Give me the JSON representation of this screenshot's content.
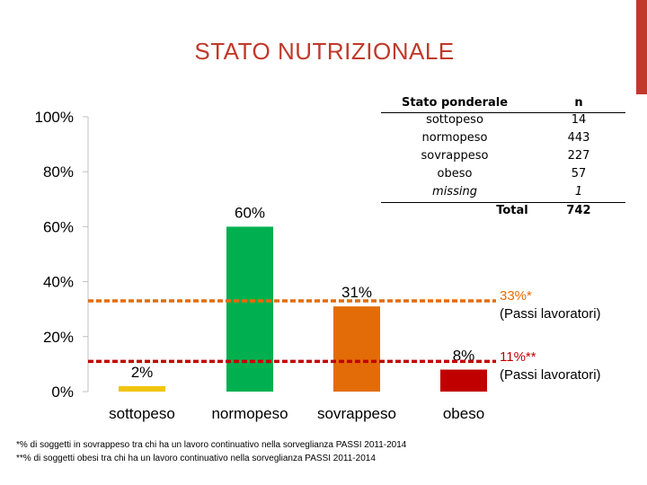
{
  "title": "STATO NUTRIZIONALE",
  "colors": {
    "accent": "#c0392b",
    "sottopeso": "#f1c40f",
    "normopeso": "#00b050",
    "sovrappeso": "#e36c09",
    "obeso": "#c00000",
    "ref_orange": "#e36c09",
    "ref_red": "#c00000"
  },
  "chart_data": {
    "type": "bar",
    "categories": [
      "sottopeso",
      "normopeso",
      "sovrappeso",
      "obeso"
    ],
    "values": [
      2,
      60,
      31,
      8
    ],
    "value_labels": [
      "2%",
      "60%",
      "31%",
      "8%"
    ],
    "ylim": [
      0,
      100
    ],
    "yticks": [
      0,
      20,
      40,
      60,
      80,
      100
    ],
    "ytick_labels": [
      "0%",
      "20%",
      "40%",
      "60%",
      "80%",
      "100%"
    ],
    "grid": false,
    "reference_lines": [
      {
        "value": 33,
        "label": "33%*",
        "sublabel": "(Passi lavoratori)",
        "style": "dashed"
      },
      {
        "value": 11,
        "label": "11%**",
        "sublabel": "(Passi lavoratori)",
        "style": "dashed"
      }
    ]
  },
  "table": {
    "headers": [
      "Stato ponderale",
      "n"
    ],
    "rows": [
      {
        "label": "sottopeso",
        "n": "14"
      },
      {
        "label": "normopeso",
        "n": "443"
      },
      {
        "label": "sovrappeso",
        "n": "227"
      },
      {
        "label": "obeso",
        "n": "57"
      },
      {
        "label": "missing",
        "n": "1"
      }
    ],
    "total_label": "Total",
    "total_n": "742"
  },
  "footnotes": [
    "*% di soggetti in sovrappeso tra chi ha un lavoro continuativo nella sorveglianza PASSI 2011-2014",
    "**% di soggetti obesi tra chi ha un lavoro continuativo nella sorveglianza PASSI 2011-2014"
  ]
}
